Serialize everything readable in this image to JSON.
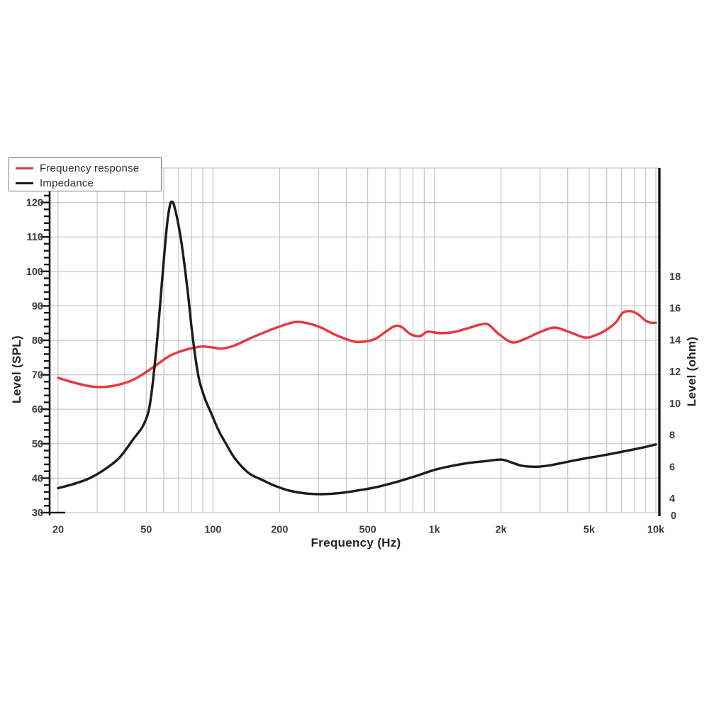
{
  "chart_data": {
    "type": "line",
    "title": "",
    "xlabel": "Frequency (Hz)",
    "ylabel_left": "Level (SPL)",
    "ylabel_right": "Level (ohm)",
    "x_scale": "log",
    "x_range": [
      20,
      10000
    ],
    "x_ticks": [
      {
        "value": 20,
        "label": "20"
      },
      {
        "value": 50,
        "label": "50"
      },
      {
        "value": 100,
        "label": "100"
      },
      {
        "value": 200,
        "label": "200"
      },
      {
        "value": 500,
        "label": "500"
      },
      {
        "value": 1000,
        "label": "1k"
      },
      {
        "value": 2000,
        "label": "2k"
      },
      {
        "value": 5000,
        "label": "5k"
      },
      {
        "value": 10000,
        "label": "10k"
      }
    ],
    "x_gridlines": [
      20,
      30,
      40,
      50,
      60,
      70,
      80,
      90,
      100,
      200,
      300,
      400,
      500,
      600,
      700,
      800,
      900,
      1000,
      2000,
      3000,
      4000,
      5000,
      6000,
      7000,
      8000,
      9000,
      10000
    ],
    "y_left_range": [
      30,
      130
    ],
    "y_left_ticks": [
      120,
      110,
      100,
      90,
      80,
      70,
      60,
      50,
      40,
      30
    ],
    "y_left_minor_step": 2,
    "y_right_ticks": [
      18,
      16,
      14,
      12,
      10,
      8,
      6,
      4
    ],
    "y_right_zero_label": "0",
    "grid": true,
    "legend_position": "top-left",
    "colors": {
      "grid": "#c6c6c6",
      "axis": "#161616",
      "tick_text": "#3c3c3c",
      "legend_border": "#7d7d7d"
    },
    "series": [
      {
        "name": "Frequency response",
        "color": "#e8363d",
        "axis": "left",
        "unit": "dB SPL",
        "points": [
          [
            20,
            69.1
          ],
          [
            24,
            67.6
          ],
          [
            29,
            66.5
          ],
          [
            34,
            66.6
          ],
          [
            40,
            67.6
          ],
          [
            45,
            69.0
          ],
          [
            50,
            70.8
          ],
          [
            56,
            73.0
          ],
          [
            63,
            75.3
          ],
          [
            70,
            76.6
          ],
          [
            80,
            77.7
          ],
          [
            90,
            78.2
          ],
          [
            100,
            77.9
          ],
          [
            110,
            77.6
          ],
          [
            125,
            78.5
          ],
          [
            150,
            80.8
          ],
          [
            175,
            82.6
          ],
          [
            200,
            84.0
          ],
          [
            235,
            85.3
          ],
          [
            270,
            84.9
          ],
          [
            310,
            83.6
          ],
          [
            360,
            81.5
          ],
          [
            430,
            79.7
          ],
          [
            480,
            79.6
          ],
          [
            540,
            80.4
          ],
          [
            600,
            82.4
          ],
          [
            660,
            84.1
          ],
          [
            710,
            83.9
          ],
          [
            780,
            81.8
          ],
          [
            860,
            81.2
          ],
          [
            930,
            82.5
          ],
          [
            1050,
            82.1
          ],
          [
            1200,
            82.3
          ],
          [
            1400,
            83.4
          ],
          [
            1600,
            84.5
          ],
          [
            1750,
            84.6
          ],
          [
            1950,
            81.9
          ],
          [
            2250,
            79.4
          ],
          [
            2600,
            80.6
          ],
          [
            3000,
            82.4
          ],
          [
            3500,
            83.7
          ],
          [
            4100,
            82.3
          ],
          [
            4800,
            80.8
          ],
          [
            5400,
            81.6
          ],
          [
            6000,
            83.1
          ],
          [
            6600,
            85.2
          ],
          [
            7100,
            88.0
          ],
          [
            7800,
            88.4
          ],
          [
            8400,
            87.3
          ],
          [
            9000,
            85.7
          ],
          [
            9500,
            85.1
          ],
          [
            10000,
            85.1
          ]
        ]
      },
      {
        "name": "Impedance",
        "color": "#1b1b1b",
        "axis": "right",
        "unit": "ohm",
        "points": [
          [
            20,
            4.65
          ],
          [
            24,
            4.95
          ],
          [
            28,
            5.3
          ],
          [
            33,
            5.9
          ],
          [
            38,
            6.6
          ],
          [
            44,
            7.8
          ],
          [
            48,
            8.5
          ],
          [
            51,
            9.4
          ],
          [
            53,
            10.8
          ],
          [
            56,
            14.0
          ],
          [
            59,
            17.8
          ],
          [
            62,
            21.2
          ],
          [
            64,
            22.5
          ],
          [
            65.5,
            22.7
          ],
          [
            67,
            22.4
          ],
          [
            70,
            21.2
          ],
          [
            73,
            19.6
          ],
          [
            77,
            17.0
          ],
          [
            81,
            14.2
          ],
          [
            86,
            11.7
          ],
          [
            92,
            10.3
          ],
          [
            98,
            9.4
          ],
          [
            106,
            8.3
          ],
          [
            114,
            7.5
          ],
          [
            126,
            6.5
          ],
          [
            145,
            5.6
          ],
          [
            168,
            5.15
          ],
          [
            190,
            4.8
          ],
          [
            220,
            4.5
          ],
          [
            260,
            4.32
          ],
          [
            310,
            4.27
          ],
          [
            370,
            4.33
          ],
          [
            450,
            4.5
          ],
          [
            550,
            4.72
          ],
          [
            680,
            5.05
          ],
          [
            820,
            5.4
          ],
          [
            1000,
            5.8
          ],
          [
            1200,
            6.05
          ],
          [
            1450,
            6.25
          ],
          [
            1700,
            6.35
          ],
          [
            2000,
            6.45
          ],
          [
            2250,
            6.25
          ],
          [
            2500,
            6.05
          ],
          [
            2900,
            6.0
          ],
          [
            3300,
            6.08
          ],
          [
            3900,
            6.28
          ],
          [
            4700,
            6.5
          ],
          [
            5600,
            6.68
          ],
          [
            6800,
            6.9
          ],
          [
            8000,
            7.1
          ],
          [
            9000,
            7.25
          ],
          [
            10000,
            7.4
          ]
        ]
      }
    ]
  }
}
